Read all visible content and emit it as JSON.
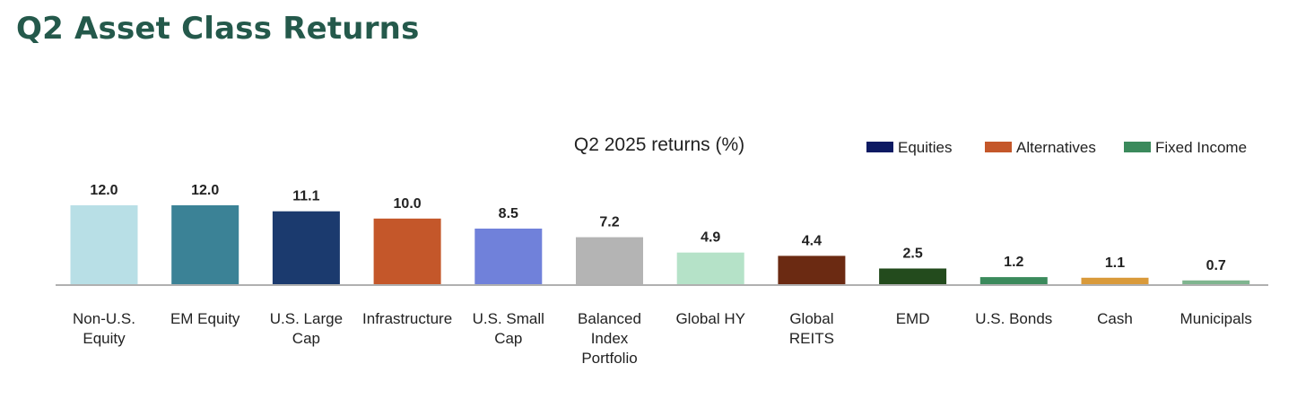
{
  "page": {
    "heading": "Q2 Asset Class Returns"
  },
  "chart_data": {
    "type": "bar",
    "title": "Q2 2025 returns (%)",
    "xlabel": "",
    "ylabel": "",
    "ylim": [
      0,
      12
    ],
    "grid": false,
    "legend_position": "top-right",
    "legend": [
      {
        "name": "Equities",
        "color": "#0d1a63"
      },
      {
        "name": "Alternatives",
        "color": "#c4572a"
      },
      {
        "name": "Fixed Income",
        "color": "#3b8a5c"
      }
    ],
    "categories": [
      [
        "Non-U.S.",
        "Equity"
      ],
      [
        "EM Equity"
      ],
      [
        "U.S. Large",
        "Cap"
      ],
      [
        "Infrastructure"
      ],
      [
        "U.S. Small",
        "Cap"
      ],
      [
        "Balanced",
        "Index",
        "Portfolio"
      ],
      [
        "Global HY"
      ],
      [
        "Global",
        "REITS"
      ],
      [
        "EMD"
      ],
      [
        "U.S. Bonds"
      ],
      [
        "Cash"
      ],
      [
        "Municipals"
      ]
    ],
    "values": [
      12.0,
      12.0,
      11.1,
      10.0,
      8.5,
      7.2,
      4.9,
      4.4,
      2.5,
      1.2,
      1.1,
      0.7
    ],
    "value_labels": [
      "12.0",
      "12.0",
      "11.1",
      "10.0",
      "8.5",
      "7.2",
      "4.9",
      "4.4",
      "2.5",
      "1.2",
      "1.1",
      "0.7"
    ],
    "colors": [
      "#b8dfe6",
      "#3b8296",
      "#1b3a6e",
      "#c4572a",
      "#7081da",
      "#b4b4b4",
      "#b5e2c8",
      "#6b2a12",
      "#234b1d",
      "#3b8a5c",
      "#d99a3a",
      "#7fb58f"
    ]
  }
}
